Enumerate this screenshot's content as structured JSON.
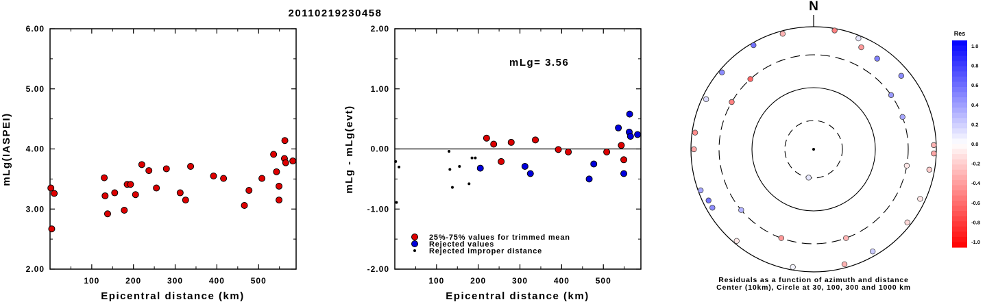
{
  "event_id": "20110219230458",
  "chart_data": [
    {
      "type": "scatter",
      "ylabel": "mLg(IASPEI)",
      "xlabel": "Epicentral distance (km)",
      "xlim": [
        0,
        590
      ],
      "ylim": [
        2.0,
        6.0
      ],
      "xticks": [
        100,
        200,
        300,
        400,
        500
      ],
      "yticks": [
        "2.00",
        "3.00",
        "4.00",
        "5.00",
        "6.00"
      ],
      "points": [
        [
          2,
          3.35
        ],
        [
          4,
          2.67
        ],
        [
          10,
          3.26
        ],
        [
          130,
          3.52
        ],
        [
          132,
          3.22
        ],
        [
          138,
          2.92
        ],
        [
          155,
          3.27
        ],
        [
          178,
          2.98
        ],
        [
          185,
          3.41
        ],
        [
          193,
          3.41
        ],
        [
          205,
          3.24
        ],
        [
          220,
          3.74
        ],
        [
          237,
          3.64
        ],
        [
          255,
          3.35
        ],
        [
          279,
          3.67
        ],
        [
          312,
          3.27
        ],
        [
          325,
          3.15
        ],
        [
          337,
          3.71
        ],
        [
          392,
          3.55
        ],
        [
          416,
          3.51
        ],
        [
          466,
          3.06
        ],
        [
          477,
          3.31
        ],
        [
          508,
          3.51
        ],
        [
          536,
          3.91
        ],
        [
          543,
          3.62
        ],
        [
          549,
          3.38
        ],
        [
          549,
          3.15
        ],
        [
          563,
          4.14
        ],
        [
          562,
          3.84
        ],
        [
          565,
          3.77
        ],
        [
          582,
          3.8
        ]
      ],
      "color": "#dd0000"
    },
    {
      "type": "scatter",
      "ylabel": "mLg - mLg(evt)",
      "xlabel": "Epicentral distance (km)",
      "xlim": [
        0,
        590
      ],
      "ylim": [
        -2.0,
        2.0
      ],
      "xticks": [
        100,
        200,
        300,
        400,
        500
      ],
      "yticks": [
        "-2.00",
        "-1.00",
        "0.00",
        "1.00",
        "2.00"
      ],
      "annotation": "mLg= 3.56",
      "legend": [
        "25%-75% values for trimmed mean",
        "Rejected values",
        "Rejected improper distance"
      ],
      "trimmed": [
        [
          220,
          0.18
        ],
        [
          237,
          0.08
        ],
        [
          255,
          -0.21
        ],
        [
          279,
          0.11
        ],
        [
          337,
          0.15
        ],
        [
          392,
          -0.01
        ],
        [
          416,
          -0.05
        ],
        [
          508,
          -0.05
        ],
        [
          543,
          0.06
        ],
        [
          549,
          -0.18
        ]
      ],
      "rejected": [
        [
          205,
          -0.32
        ],
        [
          312,
          -0.29
        ],
        [
          325,
          -0.41
        ],
        [
          466,
          -0.5
        ],
        [
          477,
          -0.25
        ],
        [
          536,
          0.35
        ],
        [
          549,
          -0.41
        ],
        [
          563,
          0.58
        ],
        [
          562,
          0.28
        ],
        [
          565,
          0.21
        ],
        [
          582,
          0.24
        ]
      ],
      "improper": [
        [
          2,
          -0.21
        ],
        [
          4,
          -0.89
        ],
        [
          10,
          -0.3
        ],
        [
          130,
          -0.04
        ],
        [
          132,
          -0.34
        ],
        [
          138,
          -0.64
        ],
        [
          155,
          -0.29
        ],
        [
          178,
          -0.58
        ],
        [
          185,
          -0.15
        ],
        [
          193,
          -0.15
        ]
      ]
    },
    {
      "type": "scatter",
      "subtype": "polar",
      "north_label": "N",
      "caption_line1": "Residuals as a function of azimuth and distance",
      "caption_line2": "Center (10km), Circle at 30, 100, 300 and 1000 km",
      "colorbar_title": "Res",
      "colorbar_ticks": [
        "1.0",
        "0.8",
        "0.6",
        "0.4",
        "0.2",
        "0.0",
        "-0.2",
        "-0.4",
        "-0.6",
        "-0.8",
        "-1.0"
      ],
      "residual_points": [
        [
          190,
          30,
          0.1
        ],
        [
          55,
          300,
          0.4
        ],
        [
          70,
          300,
          0.35
        ],
        [
          100,
          300,
          -0.1
        ],
        [
          160,
          300,
          -0.3
        ],
        [
          200,
          300,
          -0.4
        ],
        [
          230,
          300,
          0.3
        ],
        [
          300,
          300,
          -0.5
        ],
        [
          318,
          300,
          -0.6
        ],
        [
          25,
          650,
          -0.4
        ],
        [
          35,
          600,
          0.5
        ],
        [
          50,
          700,
          0.45
        ],
        [
          88,
          900,
          -0.3
        ],
        [
          92,
          900,
          -0.35
        ],
        [
          100,
          800,
          -0.2
        ],
        [
          115,
          800,
          -0.1
        ],
        [
          128,
          850,
          -0.15
        ],
        [
          150,
          820,
          0.2
        ],
        [
          165,
          860,
          -0.3
        ],
        [
          190,
          880,
          0.05
        ],
        [
          220,
          880,
          -0.1
        ],
        [
          250,
          900,
          0.35
        ],
        [
          270,
          880,
          -0.35
        ],
        [
          278,
          880,
          -0.45
        ],
        [
          295,
          840,
          0.15
        ],
        [
          310,
          880,
          0.45
        ],
        [
          330,
          900,
          0.55
        ],
        [
          345,
          880,
          -0.3
        ],
        [
          10,
          920,
          -0.5
        ],
        [
          22,
          880,
          0.1
        ],
        [
          240,
          780,
          0.45
        ],
        [
          244,
          780,
          0.55
        ]
      ]
    }
  ]
}
